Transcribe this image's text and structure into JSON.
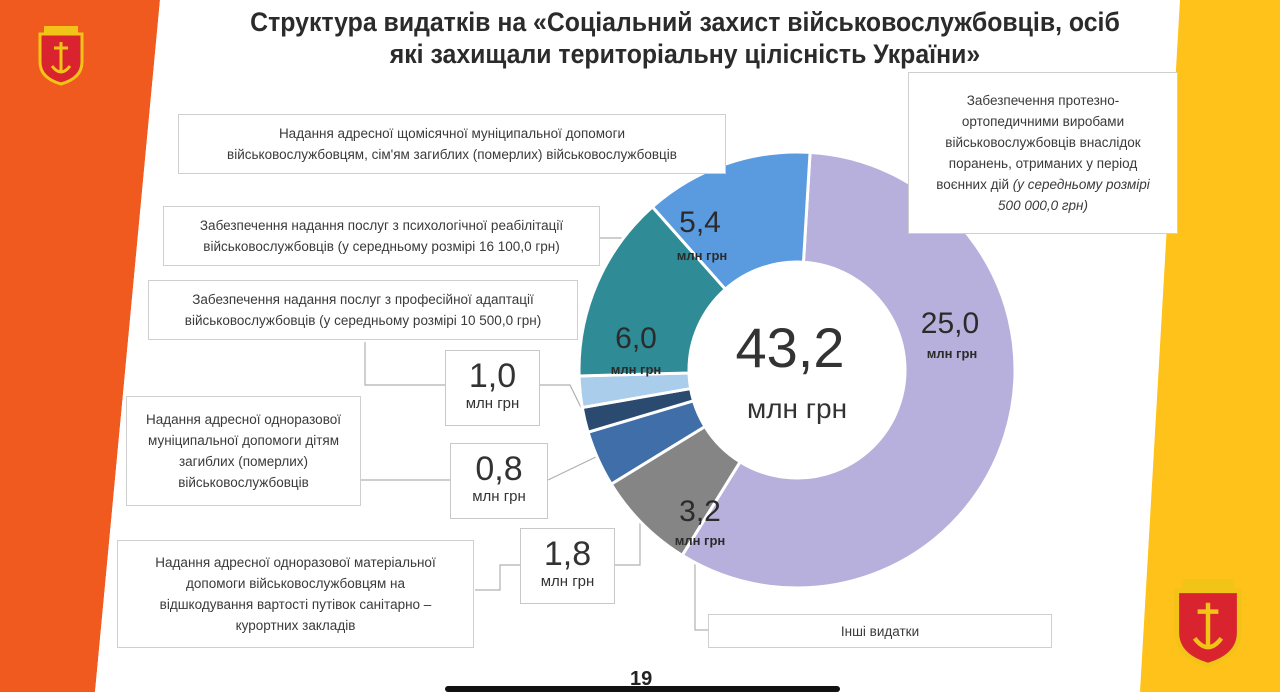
{
  "slide": {
    "title_line1": "Структура видатків на «Соціальний захист військовослужбовців, осіб",
    "title_line2": "які захищали територіальну цілісність України»",
    "page_number": "19"
  },
  "colors": {
    "left_band": "#f05a1e",
    "right_band": "#ffc21a",
    "emblem_red": "#d9232e",
    "emblem_gold": "#f2c418"
  },
  "chart_data": {
    "type": "pie",
    "total_value": "43,2",
    "total_unit": "млн грн",
    "unit": "млн грн",
    "slices": [
      {
        "label": "Забезпечення протезно-ортопедичними виробами військовослужбовців внаслідок поранень, отриманих у період воєнних дій (у середньому розмірі 500 000,0 грн)",
        "value": 25.0,
        "value_text": "25,0",
        "color": "#b8b0dc"
      },
      {
        "label": "Інші видатки",
        "value": 3.2,
        "value_text": "3,2",
        "color": "#858585"
      },
      {
        "label": "Надання адресної одноразової матеріальної допомоги військовослужбовцям на відшкодування вартості путівок санітарно – курортних закладів",
        "value": 1.8,
        "value_text": "1,8",
        "color": "#3f6ea8"
      },
      {
        "label": "Надання адресної одноразової муніципальної допомоги дітям загиблих (померлих) військовослужбовців",
        "value": 0.8,
        "value_text": "0,8",
        "color": "#2b4a70"
      },
      {
        "label": "Забезпечення надання послуг з професійної адаптації військовослужбовців (у середньому розмірі 10 500,0 грн)",
        "value": 1.0,
        "value_text": "1,0",
        "color": "#a9cdea"
      },
      {
        "label": "Забезпечення надання послуг з психологічної реабілітації військовослужбовців (у середньому розмірі 16 100,0 грн)",
        "value": 6.0,
        "value_text": "6,0",
        "color": "#2f8b96"
      },
      {
        "label": "Надання адресної щомісячної муніципальної допомоги військовослужбовцям, сім'ям загиблих (померлих) військовослужбовців",
        "value": 5.4,
        "value_text": "5,4",
        "color": "#5a9be0"
      }
    ]
  },
  "callouts": {
    "prosthetics_l1": "Забезпечення протезно-",
    "prosthetics_l2": "ортопедичними виробами",
    "prosthetics_l3": "військовослужбовців внаслідок",
    "prosthetics_l4": "поранень, отриманих у період",
    "prosthetics_l5a": "воєнних дій",
    "prosthetics_l5b": " (у середньому розмірі",
    "prosthetics_l6": "500 000,0 грн)",
    "monthly_l1": "Надання адресної щомісячної муніципальної допомоги",
    "monthly_l2": "військовослужбовцям, сім'ям загиблих (померлих) військовослужбовців",
    "psych_l1": "Забезпечення надання послуг з психологічної реабілітації",
    "psych_l2": "військовослужбовців (у середньому розмірі 16 100,0 грн)",
    "prof_l1": "Забезпечення надання послуг з професійної адаптації",
    "prof_l2": "військовослужбовців (у середньому розмірі 10 500,0 грн)",
    "children_l1": "Надання адресної одноразової",
    "children_l2": "муніципальної допомоги дітям",
    "children_l3": "загиблих (померлих)",
    "children_l4": "військовослужбовців",
    "resort_l1": "Надання адресної одноразової матеріальної",
    "resort_l2": "допомоги військовослужбовцям на",
    "resort_l3": "відшкодування вартості путівок санітарно –",
    "resort_l4": "курортних закладів",
    "other": "Інші видатки"
  },
  "value_boxes": {
    "prof_value": "1,0",
    "children_value": "0,8",
    "resort_value": "1,8",
    "unit": "млн грн"
  }
}
